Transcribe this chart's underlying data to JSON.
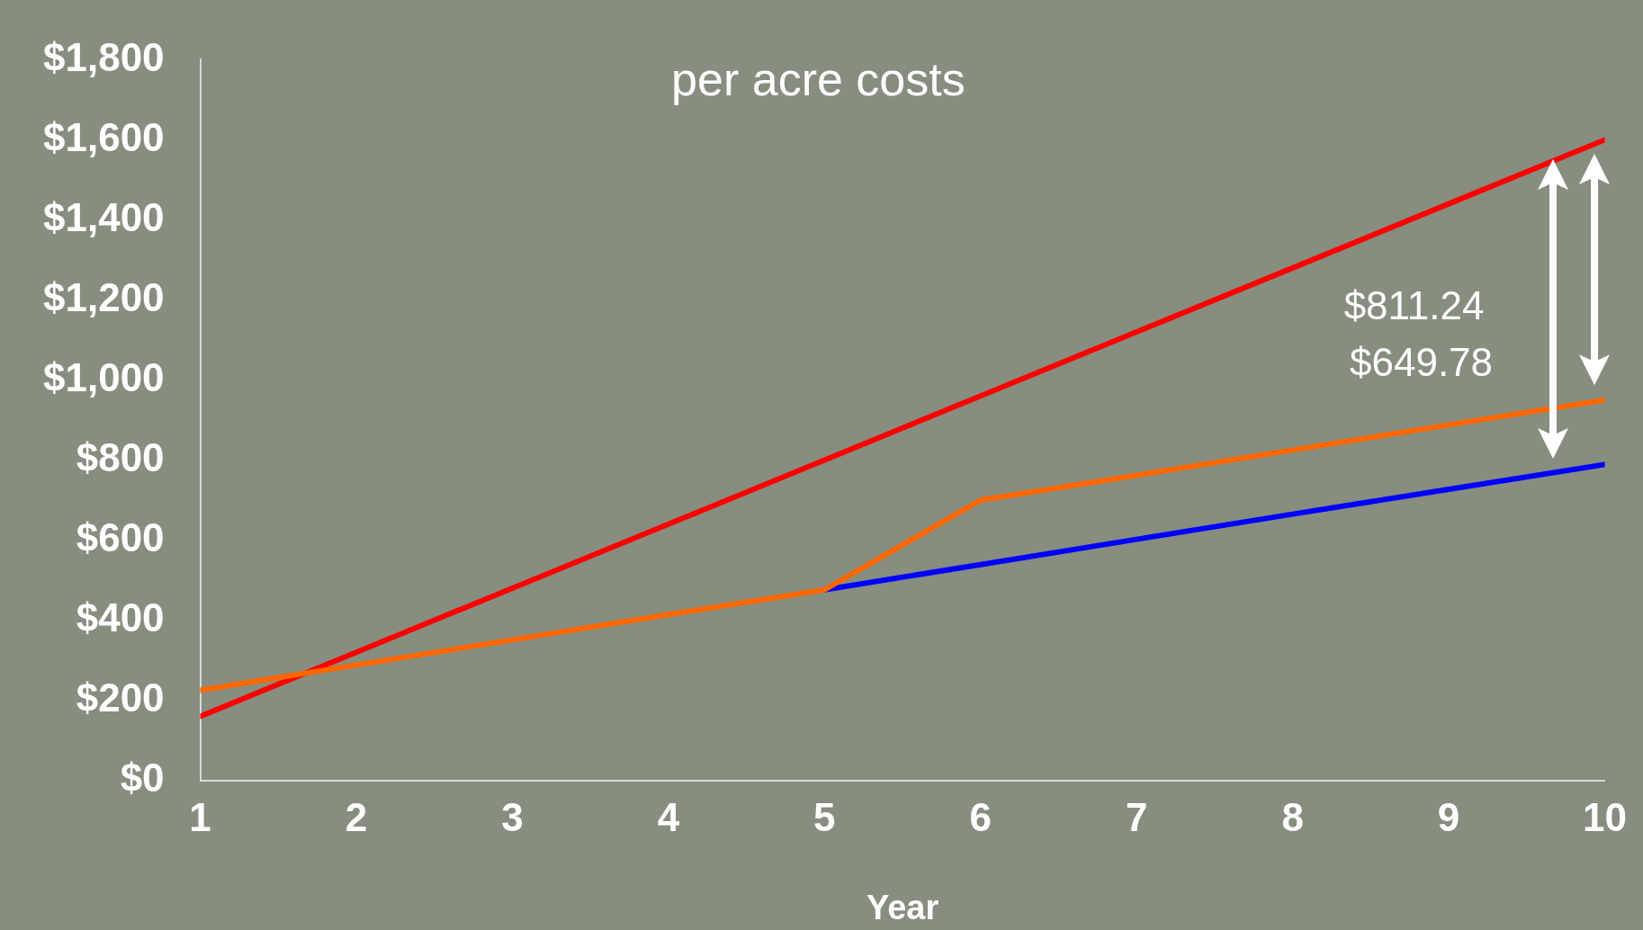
{
  "chart_data": {
    "type": "line",
    "title": "per acre costs",
    "xlabel": "Year",
    "x": [
      1,
      2,
      3,
      4,
      5,
      6,
      7,
      8,
      9,
      10
    ],
    "xlim": [
      1,
      10
    ],
    "xticks": [
      1,
      2,
      3,
      4,
      5,
      6,
      7,
      8,
      9,
      10
    ],
    "ylim": [
      0,
      1800
    ],
    "yticks": [
      {
        "value": 0,
        "label": "$0"
      },
      {
        "value": 200,
        "label": "$200"
      },
      {
        "value": 400,
        "label": "$400"
      },
      {
        "value": 600,
        "label": "$600"
      },
      {
        "value": 800,
        "label": "$800"
      },
      {
        "value": 1000,
        "label": "$1,000"
      },
      {
        "value": 1200,
        "label": "$1,200"
      },
      {
        "value": 1400,
        "label": "$1,400"
      },
      {
        "value": 1600,
        "label": "$1,600"
      },
      {
        "value": 1800,
        "label": "$1,800"
      }
    ],
    "marker": "none",
    "line_style": "solid",
    "series": [
      {
        "color": "#0000ff",
        "values": [
          null,
          null,
          null,
          null,
          476,
          539,
          602,
          665,
          727,
          789
        ]
      },
      {
        "color": "#ff0000",
        "values": [
          160,
          320,
          480,
          640,
          800,
          960,
          1120,
          1280,
          1440,
          1600
        ]
      },
      {
        "color": "#ff6600",
        "values": [
          225,
          288,
          351,
          414,
          476,
          700,
          762,
          825,
          888,
          950
        ]
      }
    ],
    "annotations": [
      "$811.24",
      "$649.78"
    ]
  }
}
